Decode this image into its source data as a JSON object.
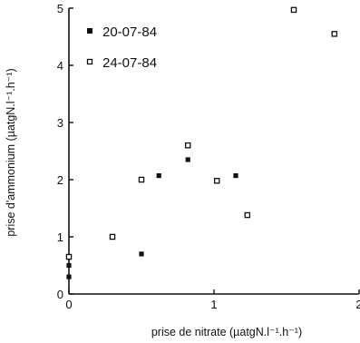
{
  "chart_data": {
    "type": "scatter",
    "title": "",
    "xlabel": "prise de nitrate (µatgN.l⁻¹.h⁻¹)",
    "ylabel": "prise d'ammonium (µatgN.l⁻¹.h⁻¹)",
    "xlim": [
      0,
      2
    ],
    "ylim": [
      0,
      5
    ],
    "xticks": [
      0,
      1,
      2
    ],
    "yticks": [
      0,
      1,
      2,
      3,
      4,
      5
    ],
    "grid": false,
    "legend_position": "top-left",
    "series": [
      {
        "name": "20-07-84",
        "marker": "filled-square",
        "points": [
          {
            "x": 0,
            "y": 0.3
          },
          {
            "x": 0,
            "y": 0.5
          },
          {
            "x": 0.5,
            "y": 0.7
          },
          {
            "x": 0.62,
            "y": 2.07
          },
          {
            "x": 0.82,
            "y": 2.35
          },
          {
            "x": 1.15,
            "y": 2.07
          }
        ]
      },
      {
        "name": "24-07-84",
        "marker": "open-square",
        "points": [
          {
            "x": 0,
            "y": 0.65
          },
          {
            "x": 0.3,
            "y": 1.0
          },
          {
            "x": 0.5,
            "y": 2.0
          },
          {
            "x": 0.82,
            "y": 2.6
          },
          {
            "x": 1.02,
            "y": 1.98
          },
          {
            "x": 1.23,
            "y": 1.38
          },
          {
            "x": 1.55,
            "y": 4.97
          },
          {
            "x": 1.83,
            "y": 4.55
          }
        ]
      }
    ]
  }
}
